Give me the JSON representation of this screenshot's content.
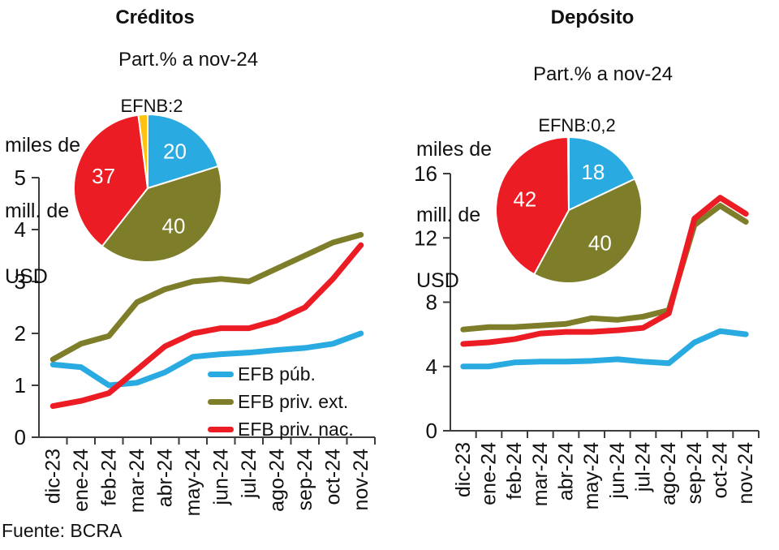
{
  "colors": {
    "axis": "#3c3c3c",
    "text": "#111111",
    "blue": "#29abe2",
    "olive": "#7d7d2a",
    "red": "#ec1c24",
    "yellow": "#ffc20e"
  },
  "source_note": "Fuente: BCRA",
  "chart_data": [
    {
      "id": "creditos",
      "type": "line",
      "title": "Créditos",
      "subtitle": "Part.% a nov-24",
      "unit": [
        "miles de",
        "mill. de",
        "USD"
      ],
      "ylabel": "miles de mill. de USD",
      "ylim": [
        0,
        5
      ],
      "yticks": [
        0,
        1,
        2,
        3,
        4,
        5
      ],
      "grid": false,
      "legend_position": "inside-bottom-right",
      "categories": [
        "dic-23",
        "ene-24",
        "feb-24",
        "mar-24",
        "abr-24",
        "may-24",
        "jun-24",
        "jul-24",
        "ago-24",
        "sep-24",
        "oct-24",
        "nov-24"
      ],
      "series": [
        {
          "name": "EFB púb.",
          "color": "#29abe2",
          "values": [
            1.4,
            1.35,
            1.0,
            1.05,
            1.25,
            1.55,
            1.6,
            1.63,
            1.68,
            1.72,
            1.8,
            2.0
          ]
        },
        {
          "name": "EFB priv. ext.",
          "color": "#7d7d2a",
          "values": [
            1.5,
            1.8,
            1.95,
            2.6,
            2.85,
            3.0,
            3.05,
            3.0,
            3.25,
            3.5,
            3.75,
            3.9
          ]
        },
        {
          "name": "EFB priv. nac.",
          "color": "#ec1c24",
          "values": [
            0.6,
            0.7,
            0.85,
            1.3,
            1.75,
            2.0,
            2.1,
            2.1,
            2.25,
            2.5,
            3.05,
            3.7
          ]
        }
      ],
      "pie": {
        "type": "pie",
        "annotation": "EFNB:2",
        "slices": [
          {
            "name": "EFB púb.",
            "value": 20,
            "label": "20",
            "color": "#29abe2"
          },
          {
            "name": "EFB priv. ext.",
            "value": 40,
            "label": "40",
            "color": "#7d7d2a"
          },
          {
            "name": "EFB priv. nac.",
            "value": 37,
            "label": "37",
            "color": "#ec1c24"
          },
          {
            "name": "EFNB",
            "value": 2,
            "label": "",
            "color": "#ffc20e"
          }
        ]
      }
    },
    {
      "id": "deposito",
      "type": "line",
      "title": "Depósito",
      "subtitle": "Part.% a nov-24",
      "unit": [
        "miles de",
        "mill. de",
        "USD"
      ],
      "ylabel": "miles de mill. de USD",
      "ylim": [
        0,
        16
      ],
      "yticks": [
        0,
        4,
        8,
        12,
        16
      ],
      "grid": false,
      "legend_position": "none",
      "categories": [
        "dic-23",
        "ene-24",
        "feb-24",
        "mar-24",
        "abr-24",
        "may-24",
        "jun-24",
        "jul-24",
        "ago-24",
        "sep-24",
        "oct-24",
        "nov-24"
      ],
      "series": [
        {
          "name": "EFB púb.",
          "color": "#29abe2",
          "values": [
            4.0,
            4.0,
            4.25,
            4.3,
            4.3,
            4.35,
            4.45,
            4.3,
            4.2,
            5.5,
            6.2,
            6.0
          ]
        },
        {
          "name": "EFB priv. ext.",
          "color": "#7d7d2a",
          "values": [
            6.3,
            6.45,
            6.45,
            6.55,
            6.65,
            7.0,
            6.9,
            7.1,
            7.5,
            12.8,
            14.0,
            13.0
          ]
        },
        {
          "name": "EFB priv. nac.",
          "color": "#ec1c24",
          "values": [
            5.4,
            5.5,
            5.7,
            6.05,
            6.15,
            6.15,
            6.25,
            6.4,
            7.3,
            13.2,
            14.5,
            13.5
          ]
        }
      ],
      "pie": {
        "type": "pie",
        "annotation": "EFNB:0,2",
        "slices": [
          {
            "name": "EFB púb.",
            "value": 18,
            "label": "18",
            "color": "#29abe2"
          },
          {
            "name": "EFB priv. ext.",
            "value": 40,
            "label": "40",
            "color": "#7d7d2a"
          },
          {
            "name": "EFB priv. nac.",
            "value": 42,
            "label": "42",
            "color": "#ec1c24"
          },
          {
            "name": "EFNB",
            "value": 0.2,
            "label": "",
            "color": "#ffc20e"
          }
        ]
      }
    }
  ]
}
